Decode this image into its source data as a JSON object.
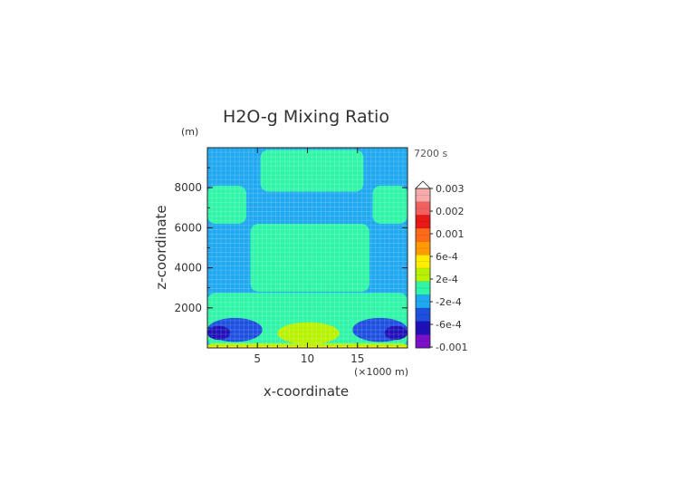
{
  "chart_data": {
    "type": "heatmap",
    "title": "H2O-g Mixing Ratio",
    "xlabel": "x-coordinate",
    "ylabel": "z-coordinate",
    "x_unit_label": "(×1000 m)",
    "y_unit_label": "(m)",
    "time_label": "7200 s",
    "xlim": [
      0,
      20
    ],
    "ylim": [
      0,
      10000
    ],
    "x_ticks": [
      5,
      10,
      15
    ],
    "y_ticks": [
      2000,
      4000,
      6000,
      8000
    ],
    "grid": true,
    "legend_position": "right",
    "colorbar": {
      "labels": [
        "0.003",
        "0.002",
        "0.001",
        "6e-4",
        "2e-4",
        "-2e-4",
        "-6e-4",
        "-0.001"
      ],
      "colors": [
        "#f7aaaa",
        "#f36060",
        "#e81818",
        "#ff6a1a",
        "#ff9a00",
        "#ffee00",
        "#b8f200",
        "#30f5a8",
        "#20a8f0",
        "#1e50e0",
        "#2010b8",
        "#7a10c8"
      ],
      "extend": "max"
    },
    "regions": [
      {
        "level": "2e-4",
        "shape": "rect",
        "x": [
          5.3,
          15.6
        ],
        "z": [
          7800,
          9900
        ]
      },
      {
        "level": "2e-4",
        "shape": "rect",
        "x": [
          0,
          3.9
        ],
        "z": [
          6200,
          8100
        ]
      },
      {
        "level": "2e-4",
        "shape": "rect",
        "x": [
          16.5,
          20
        ],
        "z": [
          6200,
          8100
        ]
      },
      {
        "level": "2e-4",
        "shape": "rect",
        "x": [
          4.3,
          16.2
        ],
        "z": [
          2800,
          6200
        ]
      },
      {
        "level": "2e-4",
        "shape": "rect",
        "x": [
          0,
          20
        ],
        "z": [
          100,
          2750
        ]
      },
      {
        "level": "-2e-4",
        "shape": "ellipse",
        "x": [
          0,
          5.5
        ],
        "z": [
          300,
          1500
        ]
      },
      {
        "level": "-2e-4",
        "shape": "ellipse",
        "x": [
          14.5,
          20
        ],
        "z": [
          300,
          1500
        ]
      },
      {
        "level": "-6e-4",
        "shape": "ellipse",
        "x": [
          0,
          2.3
        ],
        "z": [
          400,
          1100
        ]
      },
      {
        "level": "-6e-4",
        "shape": "ellipse",
        "x": [
          17.7,
          20
        ],
        "z": [
          400,
          1100
        ]
      },
      {
        "level": "6e-4",
        "shape": "ellipse",
        "x": [
          7,
          13.2
        ],
        "z": [
          180,
          1280
        ]
      },
      {
        "level": "6e-4",
        "shape": "rect",
        "x": [
          0,
          20
        ],
        "z": [
          0,
          220
        ]
      },
      {
        "level": "0.001",
        "shape": "rect",
        "x": [
          0,
          20
        ],
        "z": [
          0,
          80
        ]
      }
    ]
  }
}
